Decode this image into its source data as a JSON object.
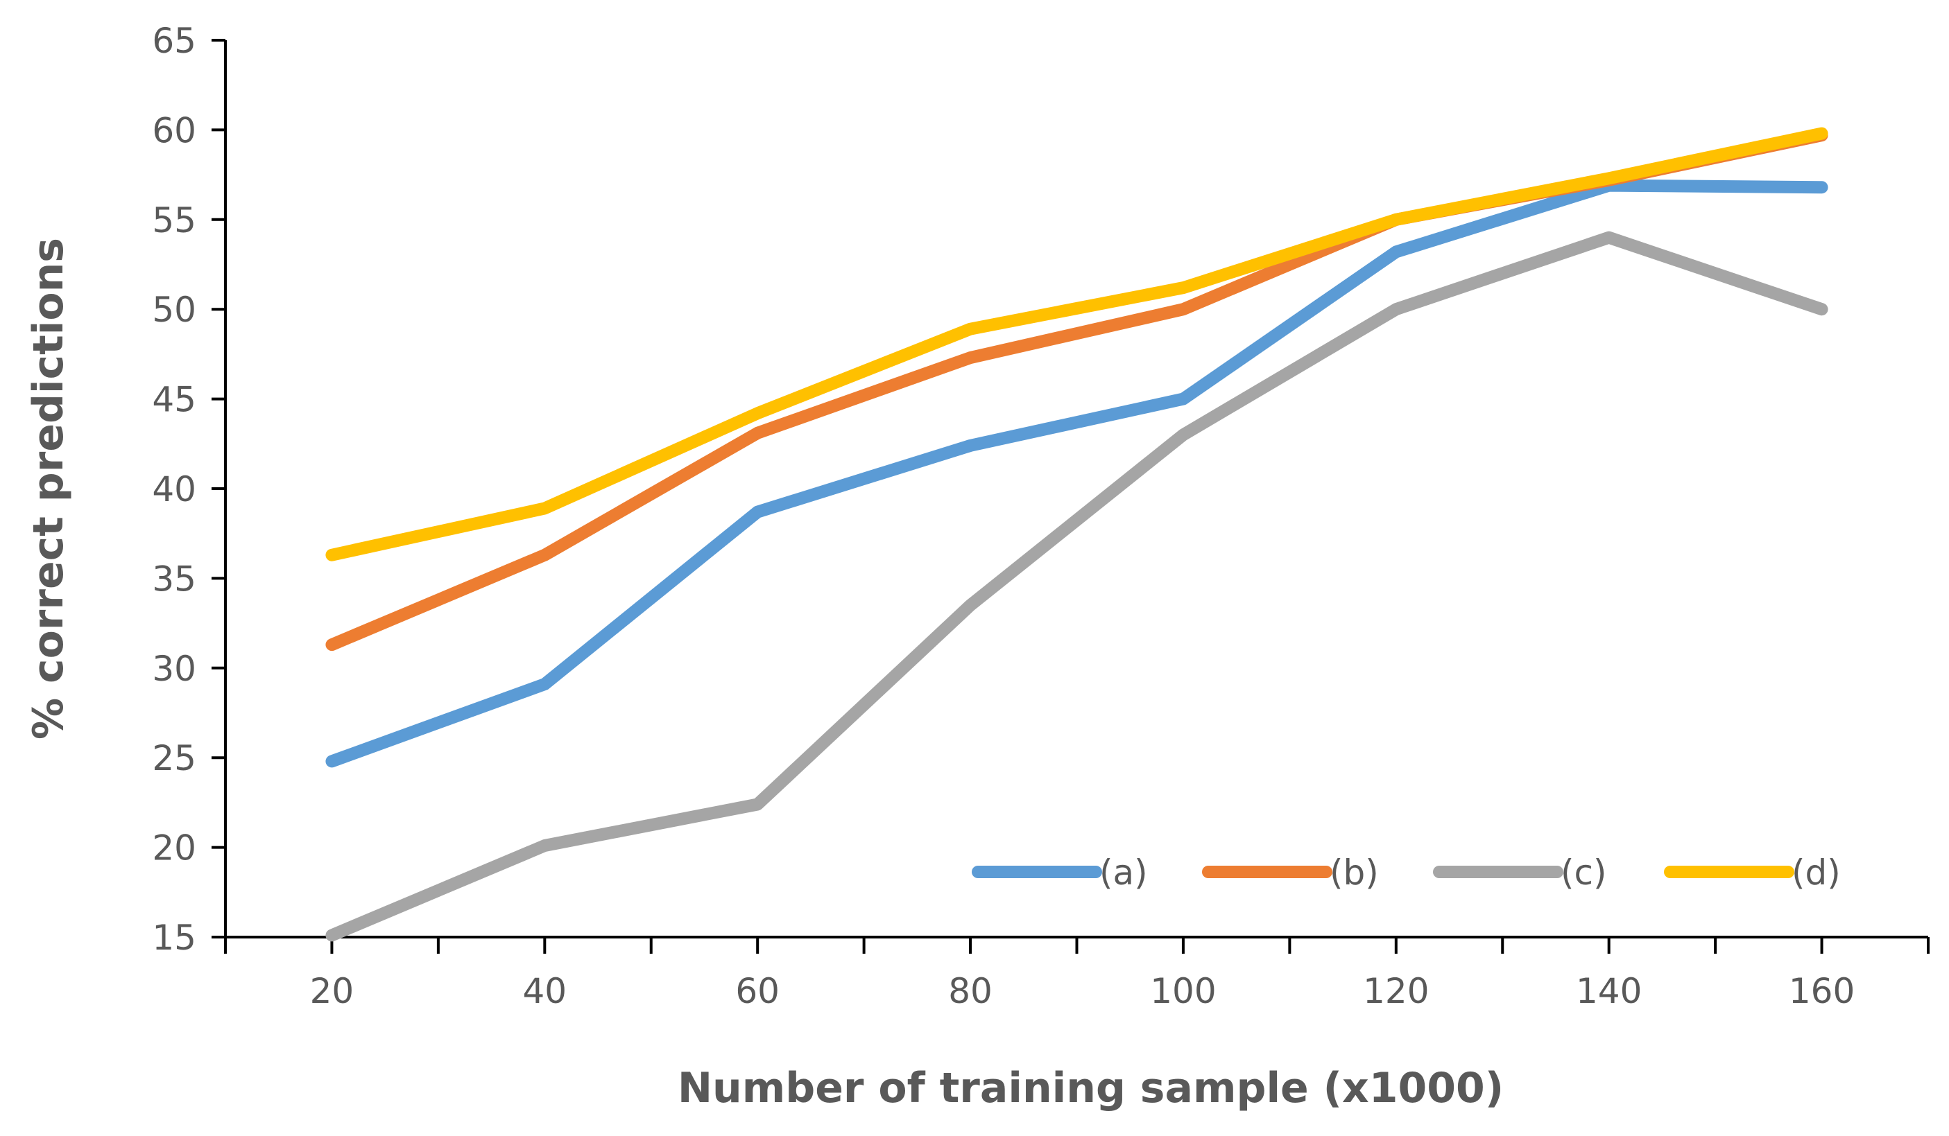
{
  "chart_data": {
    "type": "line",
    "title": "",
    "xlabel": "Number of training sample (x1000)",
    "ylabel": "% correct predictions",
    "x": [
      20,
      40,
      60,
      80,
      100,
      120,
      140,
      160
    ],
    "x_tick_labels": [
      "20",
      "40",
      "60",
      "80",
      "100",
      "120",
      "140",
      "160"
    ],
    "ylim": [
      15,
      65
    ],
    "y_ticks": [
      15,
      20,
      25,
      30,
      35,
      40,
      45,
      50,
      55,
      60,
      65
    ],
    "grid": false,
    "legend_position": "bottom-right-inside",
    "series": [
      {
        "name": "(a)",
        "color": "#5B9BD5",
        "values": [
          24.8,
          29.1,
          38.7,
          42.4,
          45.0,
          53.2,
          56.9,
          56.8
        ]
      },
      {
        "name": "(b)",
        "color": "#ED7D31",
        "values": [
          31.3,
          36.3,
          43.1,
          47.3,
          50.0,
          55.0,
          57.2,
          59.7
        ]
      },
      {
        "name": "(c)",
        "color": "#A5A5A5",
        "values": [
          15.1,
          20.1,
          22.4,
          33.5,
          43.0,
          50.0,
          54.0,
          50.0
        ]
      },
      {
        "name": "(d)",
        "color": "#FFC000",
        "values": [
          36.3,
          38.9,
          44.2,
          48.9,
          51.2,
          55.0,
          57.3,
          59.8
        ]
      }
    ]
  }
}
